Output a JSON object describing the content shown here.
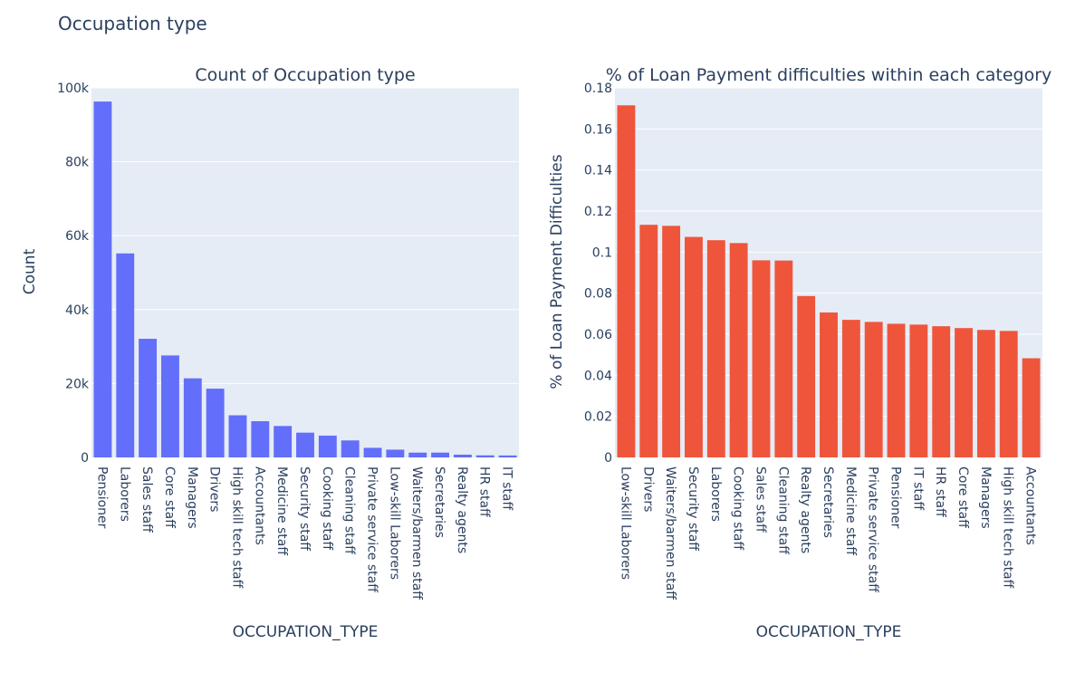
{
  "page_title": "Occupation type",
  "chart_data": [
    {
      "type": "bar",
      "title": "Count of Occupation type",
      "xlabel": "OCCUPATION_TYPE",
      "ylabel": "Count",
      "ylim": [
        0,
        100000
      ],
      "yticks": [
        0,
        20000,
        40000,
        60000,
        80000,
        100000
      ],
      "ytick_labels": [
        "0",
        "20k",
        "40k",
        "60k",
        "80k",
        "100k"
      ],
      "grid": true,
      "color": "#636efa",
      "categories": [
        "Pensioner",
        "Laborers",
        "Sales staff",
        "Core staff",
        "Managers",
        "Drivers",
        "High skill tech staff",
        "Accountants",
        "Medicine staff",
        "Security staff",
        "Cooking staff",
        "Cleaning staff",
        "Private service staff",
        "Low-skill Laborers",
        "Waiters/barmen staff",
        "Secretaries",
        "Realty agents",
        "HR staff",
        "IT staff"
      ],
      "values": [
        96300,
        55200,
        32100,
        27600,
        21400,
        18600,
        11400,
        9800,
        8500,
        6700,
        5900,
        4600,
        2600,
        2100,
        1300,
        1300,
        750,
        560,
        520
      ]
    },
    {
      "type": "bar",
      "title": "% of Loan Payment difficulties within each category",
      "xlabel": "OCCUPATION_TYPE",
      "ylabel": "% of Loan Payment Difficulties",
      "ylim": [
        0,
        0.18
      ],
      "yticks": [
        0,
        0.02,
        0.04,
        0.06,
        0.08,
        0.1,
        0.12,
        0.14,
        0.16,
        0.18
      ],
      "ytick_labels": [
        "0",
        "0.02",
        "0.04",
        "0.06",
        "0.08",
        "0.1",
        "0.12",
        "0.14",
        "0.16",
        "0.18"
      ],
      "grid": true,
      "color": "#ef553b",
      "categories": [
        "Low-skill Laborers",
        "Drivers",
        "Waiters/barmen staff",
        "Security staff",
        "Laborers",
        "Cooking staff",
        "Sales staff",
        "Cleaning staff",
        "Realty agents",
        "Secretaries",
        "Medicine staff",
        "Private service staff",
        "Pensioner",
        "IT staff",
        "HR staff",
        "Core staff",
        "Managers",
        "High skill tech staff",
        "Accountants"
      ],
      "values": [
        0.1715,
        0.1133,
        0.1128,
        0.1074,
        0.1058,
        0.1044,
        0.096,
        0.0959,
        0.0786,
        0.0706,
        0.067,
        0.066,
        0.0651,
        0.0647,
        0.0639,
        0.063,
        0.0621,
        0.0616,
        0.0483
      ]
    }
  ]
}
